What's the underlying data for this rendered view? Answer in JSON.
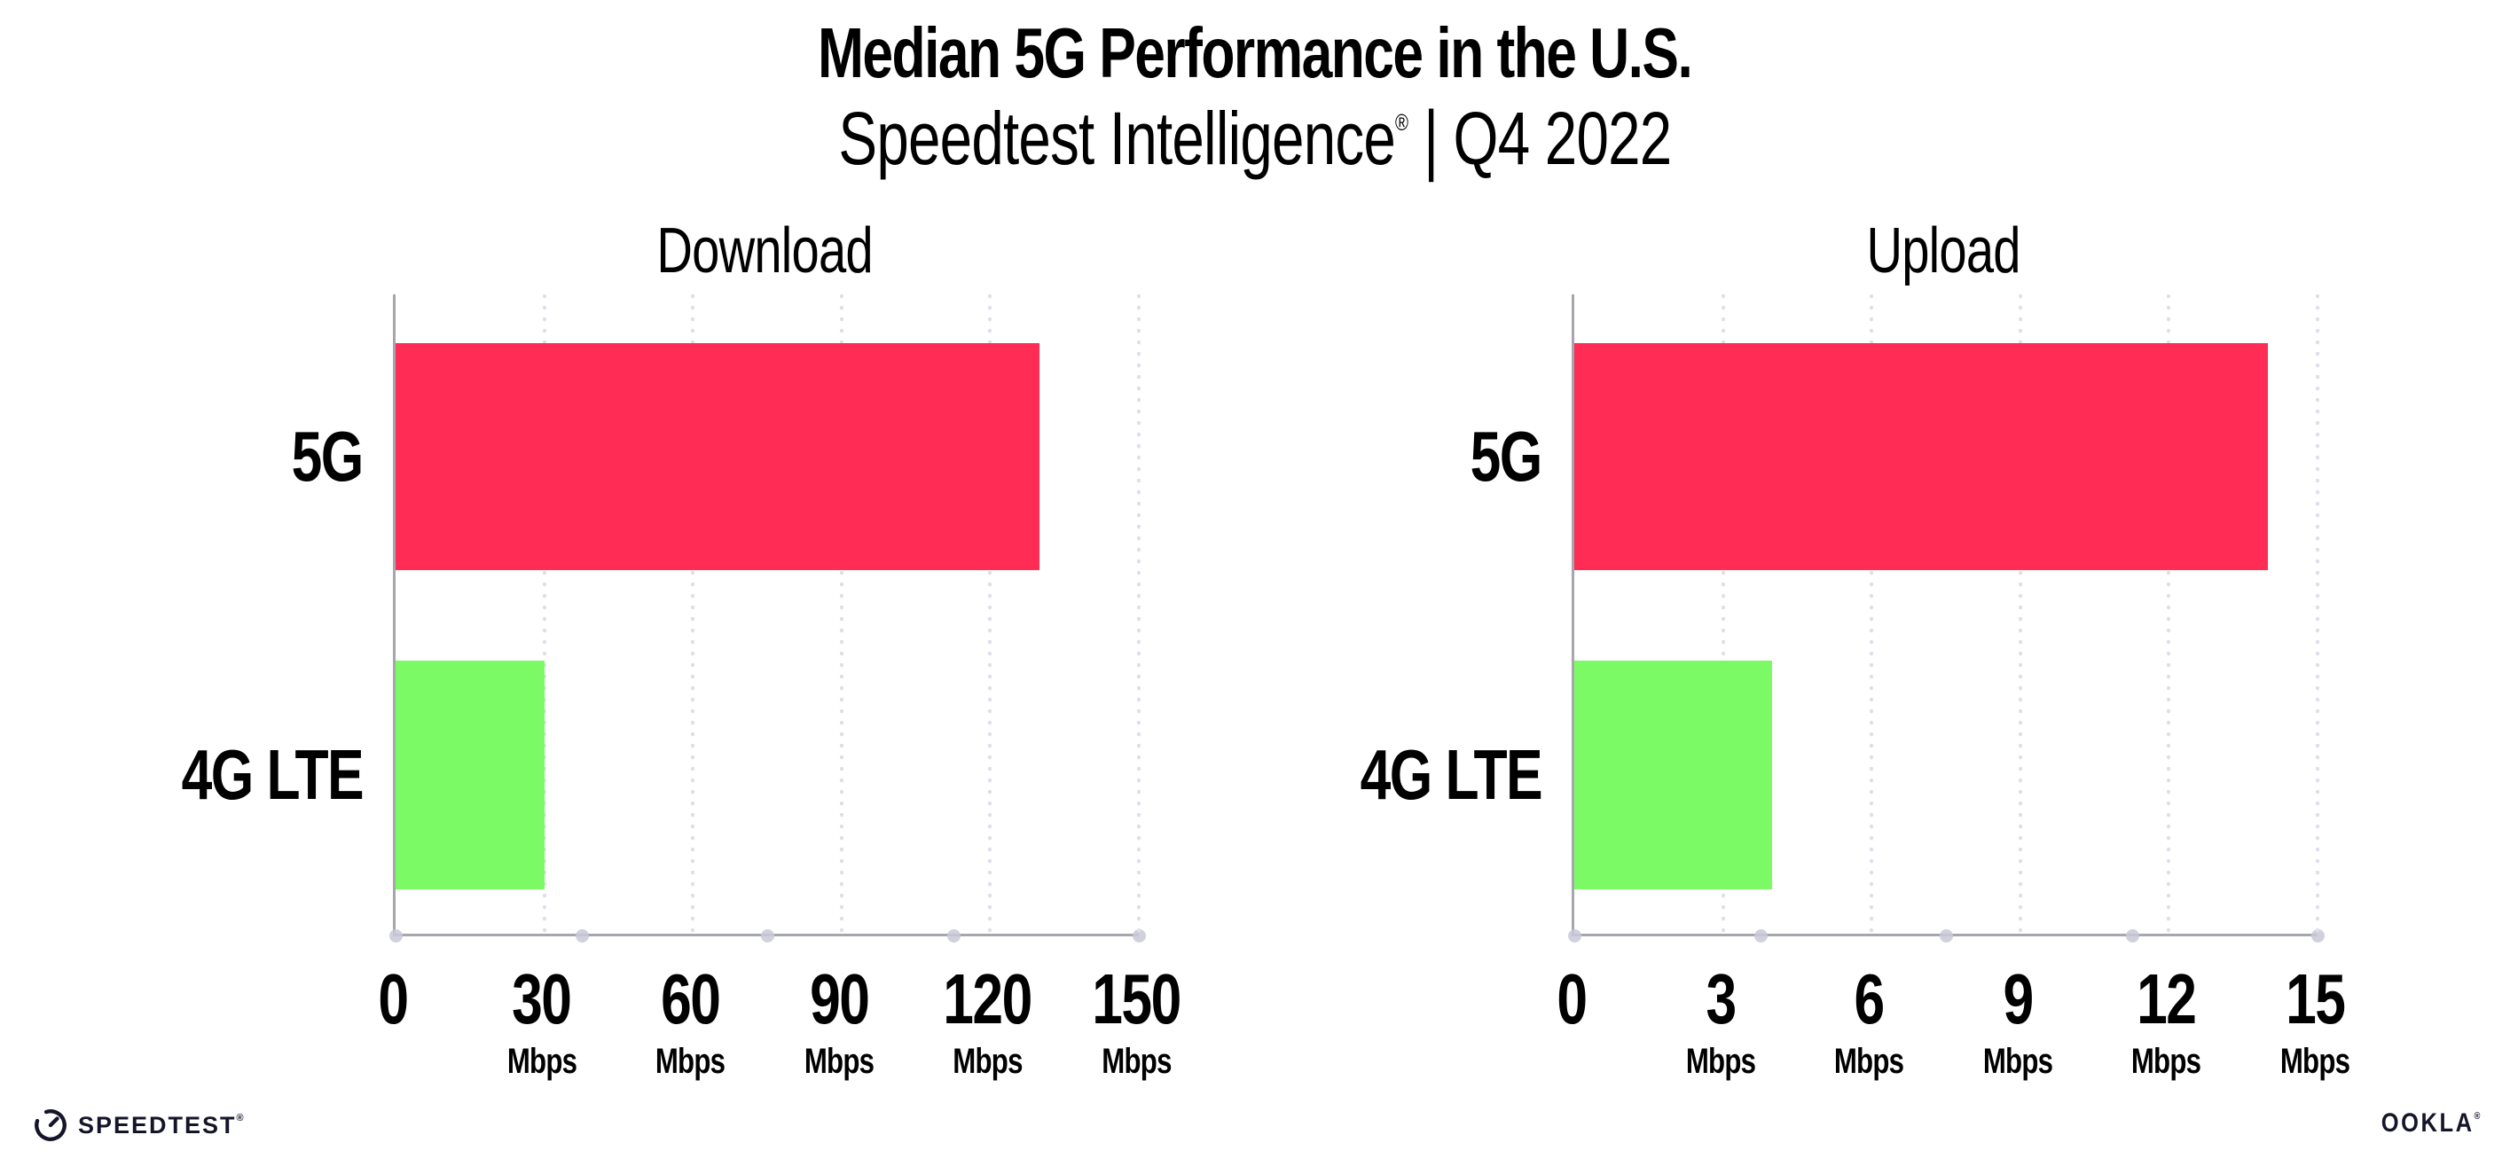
{
  "header": {
    "title": "Median 5G Performance in the U.S.",
    "subtitle_brand": "Speedtest Intelligence",
    "subtitle_mark": "®",
    "subtitle_separator": "|",
    "subtitle_period": "Q4 2022"
  },
  "colors": {
    "bar_5g": "#FF2D55",
    "bar_4g_lte": "#7CFA65",
    "axis_line": "#a6a6ad",
    "gridline_dot": "#dfdfea",
    "axis_node_dot": "#c9c9d8",
    "text": "#000000",
    "logo_text": "#15152a"
  },
  "chart_data": [
    {
      "type": "bar",
      "orientation": "horizontal",
      "title": "Download",
      "categories": [
        "5G",
        "4G LTE"
      ],
      "values": [
        130,
        30
      ],
      "unit": "Mbps",
      "xlabel": "",
      "ylabel": "",
      "xlim": [
        0,
        150
      ],
      "ticks": [
        0,
        30,
        60,
        90,
        120,
        150
      ],
      "grid": "dotted-vertical",
      "legend": "none"
    },
    {
      "type": "bar",
      "orientation": "horizontal",
      "title": "Upload",
      "categories": [
        "5G",
        "4G LTE"
      ],
      "values": [
        14,
        4
      ],
      "unit": "Mbps",
      "xlabel": "",
      "ylabel": "",
      "xlim": [
        0,
        15
      ],
      "ticks": [
        0,
        3,
        6,
        9,
        12,
        15
      ],
      "grid": "dotted-vertical",
      "legend": "none"
    }
  ],
  "footer": {
    "speedtest_label": "SPEEDTEST",
    "speedtest_mark": "®",
    "speedtest_icon": "gauge-icon",
    "ookla_label": "OOKLA",
    "ookla_mark": "®"
  }
}
